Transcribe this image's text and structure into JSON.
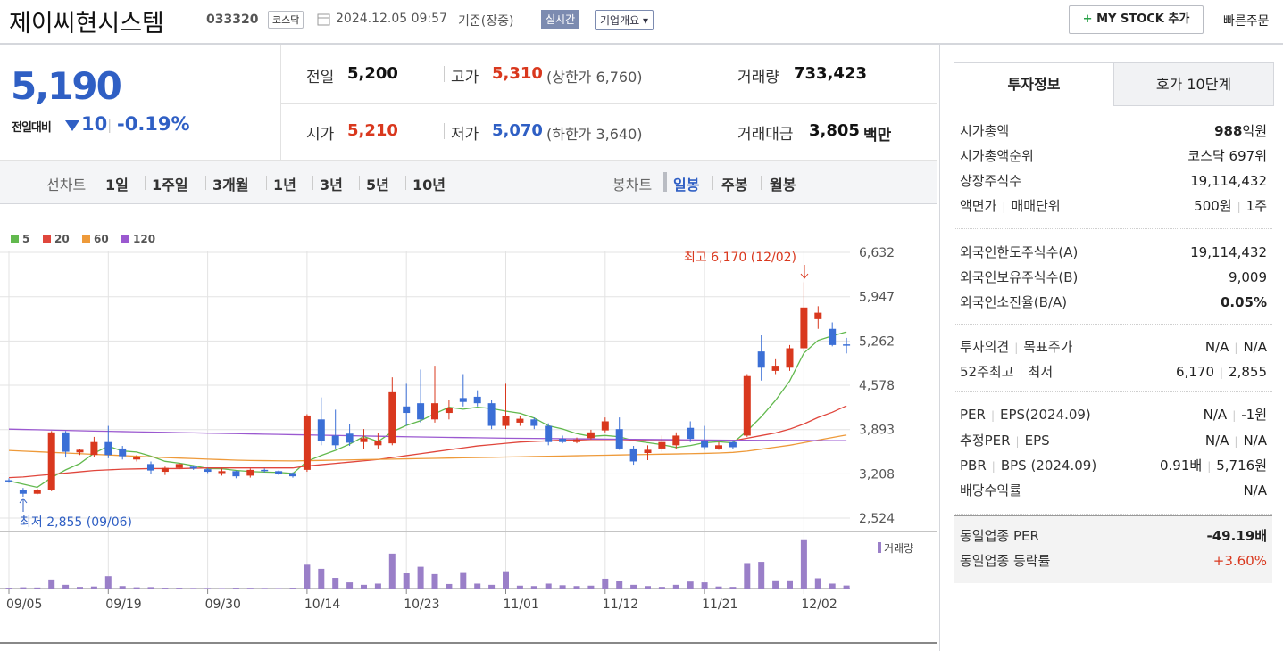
{
  "header": {
    "name": "제이씨현시스템",
    "code": "033320",
    "market": "코스닥",
    "datetime": "2024.12.05 09:57",
    "basis": "기준(장중)",
    "realtime": "실시간",
    "company_button": "기업개요",
    "mystock": "MY STOCK 추가",
    "quick_order": "빠른주문"
  },
  "quote": {
    "price": "5,190",
    "change_label": "전일대비",
    "change": "10",
    "change_pct": "-0.19%",
    "cells": [
      {
        "label": "전일",
        "value": "5,200",
        "color": "#111111"
      },
      {
        "label": "고가",
        "value": "5,310",
        "sub": "(상한가 6,760)",
        "color": "#d9381e"
      },
      {
        "label": "거래량",
        "value": "733,423",
        "color": "#111111"
      },
      {
        "label": "시가",
        "value": "5,210",
        "color": "#d9381e"
      },
      {
        "label": "저가",
        "value": "5,070",
        "sub": "(하한가 3,640)",
        "color": "#2f5fc4"
      },
      {
        "label": "거래대금",
        "value": "3,805",
        "sub": "백만",
        "color": "#111111"
      }
    ]
  },
  "period_tabs": {
    "line_label": "선차트",
    "line": [
      "1일",
      "1주일",
      "3개월",
      "1년",
      "3년",
      "5년",
      "10년"
    ],
    "candle_label": "봉차트",
    "candle": [
      "일봉",
      "주봉",
      "월봉"
    ]
  },
  "chart_data": {
    "type": "candlestick",
    "categories": [
      "09/05",
      null,
      null,
      null,
      null,
      null,
      null,
      "09/19",
      null,
      null,
      null,
      null,
      null,
      null,
      "09/30",
      null,
      null,
      null,
      null,
      null,
      null,
      "10/14",
      null,
      null,
      null,
      null,
      null,
      null,
      "10/23",
      null,
      null,
      null,
      null,
      null,
      null,
      "11/01",
      null,
      null,
      null,
      null,
      null,
      null,
      "11/12",
      null,
      null,
      null,
      null,
      null,
      null,
      "11/21",
      null,
      null,
      null,
      null,
      null,
      null,
      "12/02",
      null,
      null,
      null
    ],
    "open": [
      3110,
      2960,
      2900,
      2960,
      3850,
      3540,
      3500,
      3700,
      3600,
      3430,
      3360,
      3240,
      3300,
      3320,
      3280,
      3220,
      3250,
      3180,
      3270,
      3250,
      3220,
      3270,
      4050,
      3800,
      3830,
      3700,
      3650,
      3680,
      4250,
      4300,
      4050,
      4150,
      4380,
      4400,
      4300,
      3950,
      4000,
      4050,
      3950,
      3750,
      3700,
      3760,
      3880,
      3900,
      3600,
      3530,
      3600,
      3650,
      3920,
      3720,
      3600,
      3700,
      3800,
      5100,
      4800,
      4850,
      5150,
      5600,
      5450,
      5210
    ],
    "high": [
      3140,
      2990,
      2980,
      3870,
      3870,
      3600,
      3780,
      3950,
      3640,
      3500,
      3400,
      3320,
      3380,
      3330,
      3300,
      3290,
      3260,
      3290,
      3290,
      3260,
      3230,
      4130,
      4390,
      4200,
      3980,
      3900,
      3840,
      4700,
      4600,
      4820,
      4880,
      4350,
      4750,
      4500,
      4350,
      4600,
      4100,
      4080,
      3990,
      3800,
      3770,
      3890,
      4080,
      4080,
      3640,
      3650,
      3800,
      3850,
      4020,
      3950,
      3700,
      3720,
      4750,
      5350,
      4980,
      5200,
      6170,
      5800,
      5550,
      5310
    ],
    "low": [
      3070,
      2855,
      2890,
      2940,
      3460,
      3500,
      3470,
      3450,
      3430,
      3400,
      3200,
      3190,
      3280,
      3270,
      3220,
      3180,
      3140,
      3150,
      3230,
      3190,
      3150,
      3240,
      3650,
      3600,
      3640,
      3600,
      3600,
      3650,
      3950,
      4000,
      4000,
      4050,
      4250,
      4250,
      3900,
      3900,
      3950,
      3900,
      3650,
      3680,
      3680,
      3740,
      3850,
      3580,
      3350,
      3420,
      3550,
      3600,
      3700,
      3580,
      3580,
      3590,
      3780,
      4650,
      4750,
      4800,
      5100,
      5450,
      5180,
      5070
    ],
    "close": [
      3090,
      2900,
      2960,
      3850,
      3550,
      3580,
      3700,
      3500,
      3480,
      3470,
      3260,
      3300,
      3360,
      3290,
      3240,
      3250,
      3170,
      3270,
      3250,
      3210,
      3170,
      4110,
      3720,
      3650,
      3690,
      3760,
      3720,
      4470,
      4150,
      4050,
      4300,
      4220,
      4320,
      4300,
      3950,
      4100,
      4060,
      3950,
      3700,
      3700,
      3740,
      3850,
      4020,
      3600,
      3400,
      3580,
      3700,
      3800,
      3750,
      3620,
      3650,
      3620,
      4720,
      4850,
      4880,
      5150,
      5780,
      5700,
      5200,
      5190
    ],
    "up_color": "#d9381e",
    "down_color": "#3b6fd6",
    "ma": [
      {
        "name": "5",
        "color": "#62b94e",
        "values": [
          3100,
          3050,
          3000,
          3150,
          3270,
          3368,
          3528,
          3636,
          3562,
          3546,
          3482,
          3402,
          3374,
          3336,
          3290,
          3288,
          3262,
          3244,
          3236,
          3230,
          3214,
          3402,
          3492,
          3572,
          3668,
          3786,
          3708,
          3858,
          3958,
          4030,
          4138,
          4238,
          4208,
          4238,
          4218,
          4178,
          4146,
          4072,
          3952,
          3902,
          3830,
          3788,
          3802,
          3782,
          3722,
          3690,
          3660,
          3616,
          3646,
          3690,
          3704,
          3688,
          3872,
          4092,
          4344,
          4644,
          5076,
          5272,
          5342,
          5404
        ]
      },
      {
        "name": "20",
        "color": "#e0463c",
        "values": [
          3150,
          3160,
          3180,
          3200,
          3220,
          3240,
          3260,
          3270,
          3280,
          3285,
          3290,
          3290,
          3290,
          3295,
          3300,
          3300,
          3300,
          3300,
          3300,
          3300,
          3300,
          3330,
          3350,
          3370,
          3390,
          3410,
          3430,
          3460,
          3490,
          3520,
          3550,
          3580,
          3610,
          3640,
          3660,
          3680,
          3700,
          3710,
          3720,
          3730,
          3730,
          3740,
          3740,
          3740,
          3730,
          3720,
          3720,
          3720,
          3720,
          3720,
          3720,
          3720,
          3760,
          3800,
          3840,
          3900,
          3980,
          4080,
          4160,
          4260
        ]
      },
      {
        "name": "60",
        "color": "#ee9a3a",
        "values": [
          3570,
          3560,
          3550,
          3540,
          3530,
          3520,
          3510,
          3500,
          3490,
          3480,
          3470,
          3460,
          3452,
          3444,
          3436,
          3428,
          3420,
          3415,
          3412,
          3410,
          3408,
          3412,
          3416,
          3420,
          3424,
          3428,
          3432,
          3436,
          3440,
          3444,
          3448,
          3452,
          3456,
          3460,
          3464,
          3468,
          3472,
          3476,
          3480,
          3484,
          3488,
          3492,
          3496,
          3500,
          3504,
          3508,
          3512,
          3516,
          3520,
          3524,
          3530,
          3540,
          3560,
          3590,
          3620,
          3650,
          3690,
          3730,
          3770,
          3810
        ]
      },
      {
        "name": "120",
        "color": "#9b59d0",
        "values": [
          3900,
          3895,
          3890,
          3885,
          3880,
          3875,
          3870,
          3866,
          3862,
          3858,
          3854,
          3850,
          3846,
          3842,
          3838,
          3834,
          3830,
          3826,
          3822,
          3818,
          3814,
          3810,
          3806,
          3802,
          3798,
          3794,
          3790,
          3786,
          3782,
          3778,
          3775,
          3772,
          3769,
          3766,
          3763,
          3760,
          3758,
          3756,
          3754,
          3752,
          3750,
          3748,
          3746,
          3744,
          3742,
          3740,
          3738,
          3736,
          3734,
          3732,
          3730,
          3729,
          3728,
          3727,
          3726,
          3725,
          3724,
          3723,
          3722,
          3721
        ]
      }
    ],
    "volume": [
      200000,
      300000,
      250000,
      2200000,
      900000,
      400000,
      500000,
      3000000,
      600000,
      300000,
      350000,
      200000,
      200000,
      150000,
      150000,
      120000,
      200000,
      180000,
      150000,
      120000,
      200000,
      5800000,
      4800000,
      2600000,
      1500000,
      900000,
      1200000,
      8500000,
      3800000,
      5300000,
      3500000,
      1100000,
      4000000,
      1200000,
      900000,
      4200000,
      700000,
      600000,
      1200000,
      800000,
      600000,
      700000,
      2400000,
      1800000,
      900000,
      600000,
      400000,
      900000,
      1700000,
      1500000,
      500000,
      400000,
      6200000,
      6500000,
      2000000,
      2000000,
      12000000,
      2500000,
      1200000,
      733423
    ],
    "volume_color": "#9a7fc8",
    "volume_label": "거래량",
    "volume_ylim": [
      0,
      12600000
    ],
    "ylim": [
      2524,
      6632
    ],
    "yticks": [
      {
        "value": 2524,
        "label": "2,524"
      },
      {
        "value": 3208,
        "label": "3,208"
      },
      {
        "value": 3893,
        "label": "3,893"
      },
      {
        "value": 4578,
        "label": "4,578"
      },
      {
        "value": 5262,
        "label": "5,262"
      },
      {
        "value": 5947,
        "label": "5,947"
      },
      {
        "value": 6632,
        "label": "6,632"
      }
    ],
    "grid": true,
    "annotations": [
      {
        "text": "최고 6,170 (12/02)",
        "color": "#d9381e"
      },
      {
        "text": "최저 2,855 (09/06)",
        "color": "#2f5fc4"
      }
    ]
  },
  "side": {
    "tabs": [
      "투자정보",
      "호가 10단계"
    ],
    "groups": [
      [
        {
          "label": [
            "시가총액"
          ],
          "value": [
            "988"
          ],
          "unit": "억원",
          "bold": true
        },
        {
          "label": [
            "시가총액순위"
          ],
          "value": [
            "코스닥 697위"
          ]
        },
        {
          "label": [
            "상장주식수"
          ],
          "value": [
            "19,114,432"
          ]
        },
        {
          "label": [
            "액면가",
            "매매단위"
          ],
          "value": [
            "500원",
            "1주"
          ]
        }
      ],
      [
        {
          "label": [
            "외국인한도주식수(A)"
          ],
          "value": [
            "19,114,432"
          ]
        },
        {
          "label": [
            "외국인보유주식수(B)"
          ],
          "value": [
            "9,009"
          ]
        },
        {
          "label": [
            "외국인소진율(B/A)"
          ],
          "value": [
            "0.05%"
          ],
          "bold": true
        }
      ],
      [
        {
          "label": [
            "투자의견",
            "목표주가"
          ],
          "value": [
            "N/A",
            "N/A"
          ]
        },
        {
          "label": [
            "52주최고",
            "최저"
          ],
          "value": [
            "6,170",
            "2,855"
          ]
        }
      ],
      [
        {
          "label": [
            "PER",
            "EPS(2024.09)"
          ],
          "value": [
            "N/A",
            "-1원"
          ]
        },
        {
          "label": [
            "추정PER",
            "EPS"
          ],
          "value": [
            "N/A",
            "N/A"
          ]
        },
        {
          "label": [
            "PBR",
            "BPS (2024.09)"
          ],
          "value": [
            "0.91배",
            "5,716원"
          ]
        },
        {
          "label": [
            "배당수익률"
          ],
          "value": [
            "N/A"
          ]
        }
      ],
      [
        {
          "label": [
            "동일업종 PER"
          ],
          "value": [
            "-49.19배"
          ],
          "bold": true
        },
        {
          "label": [
            "동일업종 등락률"
          ],
          "value": [
            "+3.60%"
          ],
          "color": "#d9381e"
        }
      ]
    ]
  }
}
